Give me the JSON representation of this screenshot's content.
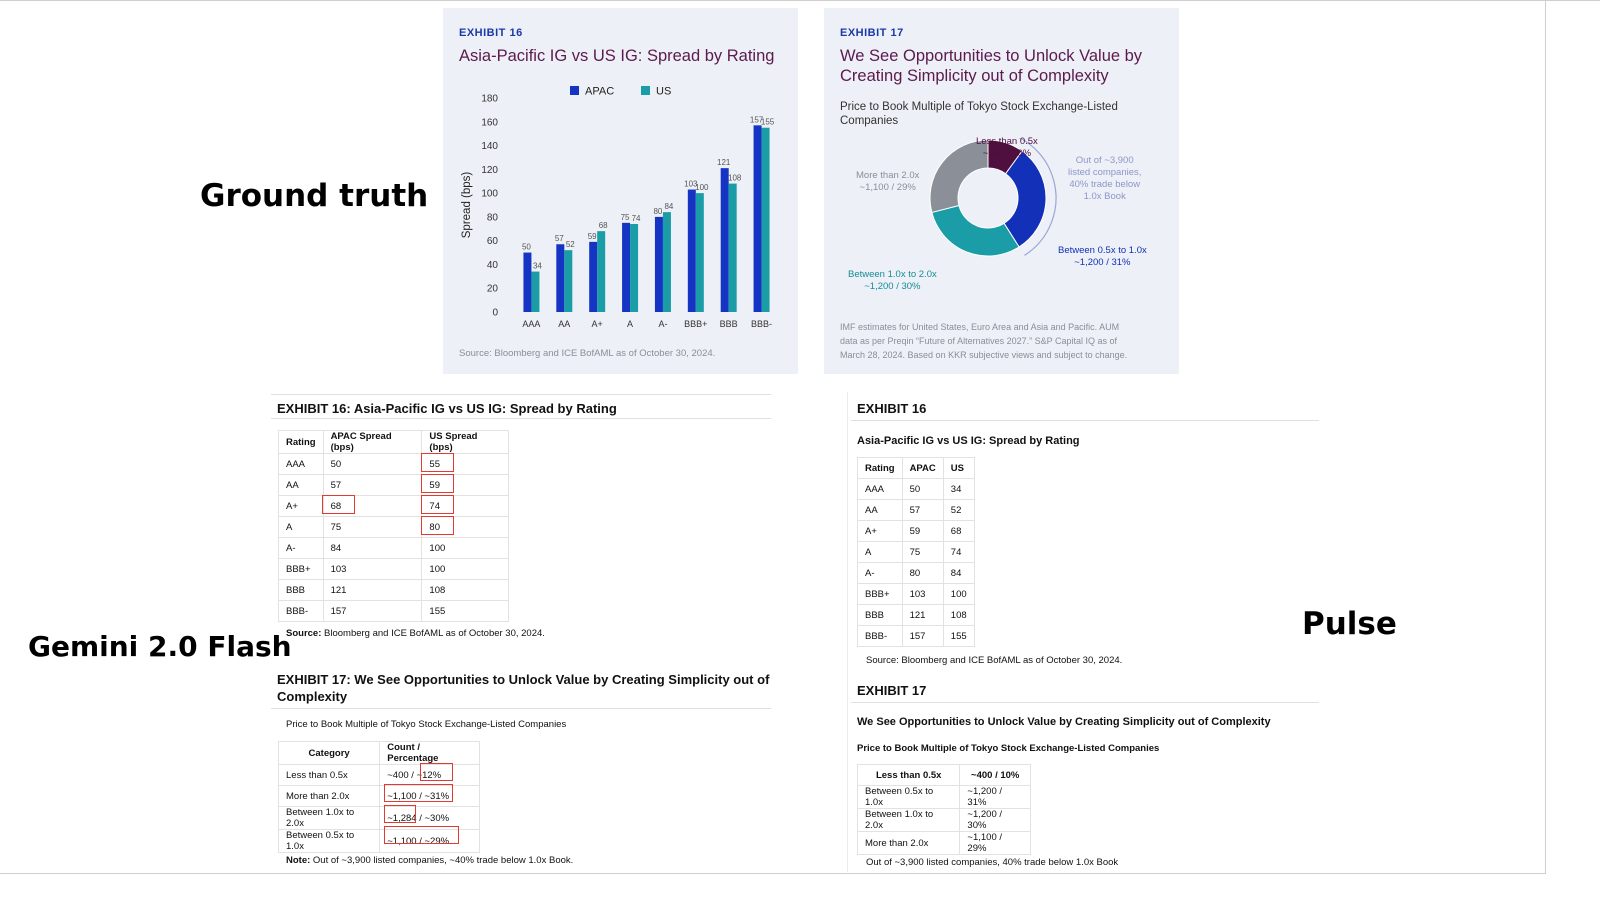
{
  "labels": {
    "ground_truth": "Ground truth",
    "gemini": "Gemini 2.0 Flash",
    "pulse": "Pulse"
  },
  "gt": {
    "ex16": {
      "tag": "EXHIBIT 16",
      "title": "Asia-Pacific IG vs US IG: Spread by Rating",
      "source": "Source: Bloomberg and ICE BofAML as of October 30, 2024."
    },
    "ex17": {
      "tag": "EXHIBIT 17",
      "title_line1": "We See Opportunities to Unlock Value by",
      "title_line2": "Creating Simplicity out of Complexity",
      "subtitle_line1": "Price to Book Multiple of Tokyo Stock Exchange-Listed",
      "subtitle_line2": "Companies",
      "slices": [
        {
          "label": "Less than 0.5x",
          "value_text": "~400 / 10%",
          "percent": 10,
          "color": "#4f0f3f"
        },
        {
          "label": "Between 0.5x to 1.0x",
          "value_text": "~1,200 / 31%",
          "percent": 31,
          "color": "#1230b8"
        },
        {
          "label": "Between 1.0x to 2.0x",
          "value_text": "~1,200 / 30%",
          "percent": 30,
          "color": "#1a9da6"
        },
        {
          "label": "More than 2.0x",
          "value_text": "~1,100 / 29%",
          "percent": 29,
          "color": "#8b8f98"
        }
      ],
      "note_line1": "Out of ~3,900",
      "note_line2": "listed companies,",
      "note_line3": "40% trade below",
      "note_line4": "1.0x Book",
      "footer_line1": "IMF estimates for United States, Euro Area and Asia and Pacific. AUM",
      "footer_line2": "data as per Preqin “Future of Alternatives 2027.” S&P Capital IQ as of",
      "footer_line3": "March 28, 2024. Based on KKR subjective views and subject to change."
    }
  },
  "chart_data": {
    "type": "bar",
    "title": "Asia-Pacific IG vs US IG: Spread by Rating",
    "xlabel": "",
    "ylabel": "Spread (bps)",
    "ylim": [
      0,
      180
    ],
    "yticks": [
      0,
      20,
      40,
      60,
      80,
      100,
      120,
      140,
      160,
      180
    ],
    "categories": [
      "AAA",
      "AA",
      "A+",
      "A",
      "A-",
      "BBB+",
      "BBB",
      "BBB-"
    ],
    "series": [
      {
        "name": "APAC",
        "color": "#1634c4",
        "values": [
          50,
          57,
          59,
          75,
          80,
          103,
          121,
          157
        ]
      },
      {
        "name": "US",
        "color": "#1a9da6",
        "values": [
          34,
          52,
          68,
          74,
          84,
          100,
          108,
          155
        ]
      }
    ],
    "legend": "top-center"
  },
  "gemini": {
    "ex16_title": "EXHIBIT 16: Asia-Pacific IG vs US IG: Spread by Rating",
    "t16_headers": [
      "Rating",
      "APAC Spread (bps)",
      "US Spread (bps)"
    ],
    "t16_rows": [
      [
        "AAA",
        "50",
        "55"
      ],
      [
        "AA",
        "57",
        "59"
      ],
      [
        "A+",
        "68",
        "74"
      ],
      [
        "A",
        "75",
        "80"
      ],
      [
        "A-",
        "84",
        "100"
      ],
      [
        "BBB+",
        "103",
        "100"
      ],
      [
        "BBB",
        "121",
        "108"
      ],
      [
        "BBB-",
        "157",
        "155"
      ]
    ],
    "source_bold": "Source:",
    "source_text": " Bloomberg and ICE BofAML as of October 30, 2024.",
    "ex17_title_line1": "EXHIBIT 17: We See Opportunities to Unlock Value by Creating Simplicity out of",
    "ex17_title_line2": "Complexity",
    "ex17_subtitle": "Price to Book Multiple of Tokyo Stock Exchange-Listed Companies",
    "t17_headers": [
      "Category",
      "Count / Percentage"
    ],
    "t17_rows": [
      [
        "Less than 0.5x",
        "~400 / ~12%"
      ],
      [
        "More than 2.0x",
        "~1,100 / ~31%"
      ],
      [
        "Between 1.0x to 2.0x",
        "~1,284 / ~30%"
      ],
      [
        "Between 0.5x to 1.0x",
        "~1,100 / ~29%"
      ]
    ],
    "note_bold": "Note:",
    "note_text": " Out of ~3,900 listed companies, ~40% trade below 1.0x Book."
  },
  "pulse": {
    "ex16_tag": "EXHIBIT 16",
    "ex16_title": "Asia-Pacific IG vs US IG: Spread by Rating",
    "t16_headers": [
      "Rating",
      "APAC",
      "US"
    ],
    "t16_rows": [
      [
        "AAA",
        "50",
        "34"
      ],
      [
        "AA",
        "57",
        "52"
      ],
      [
        "A+",
        "59",
        "68"
      ],
      [
        "A",
        "75",
        "74"
      ],
      [
        "A-",
        "80",
        "84"
      ],
      [
        "BBB+",
        "103",
        "100"
      ],
      [
        "BBB",
        "121",
        "108"
      ],
      [
        "BBB-",
        "157",
        "155"
      ]
    ],
    "source": "Source: Bloomberg and ICE BofAML as of October 30, 2024.",
    "ex17_tag": "EXHIBIT 17",
    "ex17_title": "We See Opportunities to Unlock Value by Creating Simplicity out of Complexity",
    "ex17_subtitle": "Price to Book Multiple of Tokyo Stock Exchange-Listed Companies",
    "t17_headers": [
      "Less than 0.5x",
      "~400 / 10%"
    ],
    "t17_rows": [
      [
        "Between 0.5x to 1.0x",
        "~1,200 / 31%"
      ],
      [
        "Between 1.0x to 2.0x",
        "~1,200 / 30%"
      ],
      [
        "More than 2.0x",
        "~1,100 / 29%"
      ]
    ],
    "note": "Out of ~3,900 listed companies, 40% trade below 1.0x Book"
  }
}
